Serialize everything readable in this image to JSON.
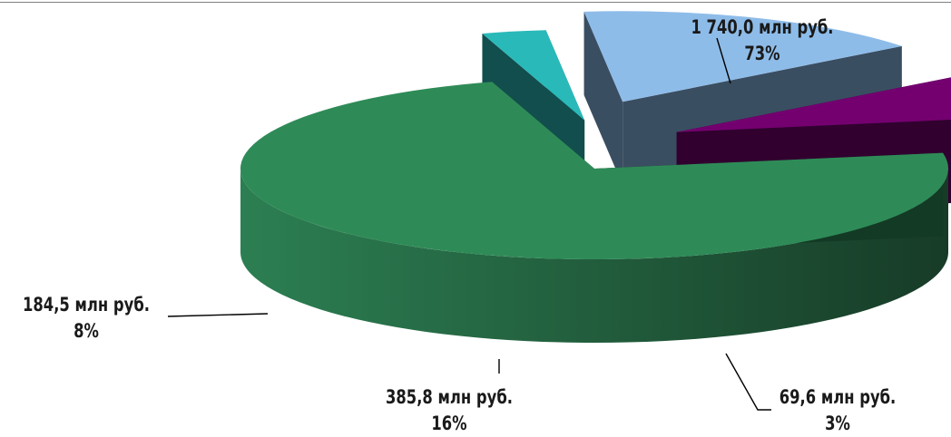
{
  "chart_data": {
    "type": "pie",
    "categories": [
      "1 740,0 млн руб.",
      "69,6 млн руб.",
      "385,8 млн руб.",
      "184,5 млн руб."
    ],
    "values": [
      1740.0,
      69.6,
      385.8,
      184.5
    ],
    "percent_labels": [
      "73%",
      "3%",
      "16%",
      "8%"
    ],
    "unit": "млн руб.",
    "style": "3d-exploded",
    "legend": "none",
    "colors": [
      "#2e8b57",
      "#2ab9b9",
      "#8ab9e8",
      "#740070"
    ]
  }
}
